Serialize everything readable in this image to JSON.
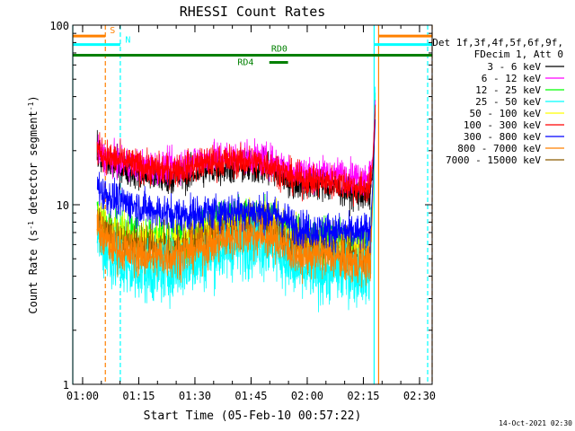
{
  "chart_data": {
    "type": "line",
    "title": "RHESSI Count Rates",
    "xlabel": "Start Time (05-Feb-10 00:57:22)",
    "ylabel_main": "Count Rate (s",
    "ylabel_sup1": "-1",
    "ylabel_mid": " detector segment",
    "ylabel_sup2": "-1",
    "ylabel_end": ")",
    "x_scale": "time (minutes since 00:57:22)",
    "xlim": [
      0,
      96
    ],
    "y_scale": "log",
    "ylim": [
      1,
      100
    ],
    "x_ticks": [
      {
        "label": "01:00",
        "t": 2.63
      },
      {
        "label": "01:15",
        "t": 17.63
      },
      {
        "label": "01:30",
        "t": 32.63
      },
      {
        "label": "01:45",
        "t": 47.63
      },
      {
        "label": "02:00",
        "t": 62.63
      },
      {
        "label": "02:15",
        "t": 77.63
      },
      {
        "label": "02:30",
        "t": 92.63
      }
    ],
    "y_ticks": [
      {
        "label": "100",
        "v": 100
      },
      {
        "label": "10",
        "v": 10
      },
      {
        "label": "1",
        "v": 1
      }
    ],
    "legend": {
      "placement": "right",
      "header": [
        "Det 1f,3f,4f,5f,6f,9f,",
        "FDecim 1, Att 0"
      ],
      "entries": [
        {
          "name": "3 - 6 keV",
          "color": "#000000"
        },
        {
          "name": "6 - 12 keV",
          "color": "#ff00ff"
        },
        {
          "name": "12 - 25 keV",
          "color": "#00ff00"
        },
        {
          "name": "25 - 50 keV",
          "color": "#00ffff"
        },
        {
          "name": "50 - 100 keV",
          "color": "#ffff00"
        },
        {
          "name": "100 - 300 keV",
          "color": "#ff0000"
        },
        {
          "name": "300 - 800 keV",
          "color": "#0000ff"
        },
        {
          "name": "800 - 7000 keV",
          "color": "#ff8000"
        },
        {
          "name": "7000 - 15000 keV",
          "color": "#8b5a00"
        }
      ]
    },
    "series": [
      {
        "color": "#00ff00",
        "t_start": 6.5,
        "t_end": 80.8,
        "noise": 0.06,
        "points": [
          [
            6.5,
            9
          ],
          [
            8,
            8
          ],
          [
            11,
            7
          ],
          [
            15,
            6.8
          ],
          [
            20,
            6.6
          ],
          [
            25,
            6.4
          ],
          [
            30,
            6.6
          ],
          [
            35,
            7.2
          ],
          [
            40,
            7.8
          ],
          [
            45,
            8.2
          ],
          [
            50,
            8.2
          ],
          [
            53,
            8
          ],
          [
            56,
            7.5
          ],
          [
            58,
            6.8
          ],
          [
            61,
            6.4
          ],
          [
            66,
            6.5
          ],
          [
            70,
            6.4
          ],
          [
            74,
            6
          ],
          [
            77,
            5.9
          ],
          [
            79.5,
            6.2
          ],
          [
            80.2,
            14
          ],
          [
            80.8,
            42
          ]
        ]
      },
      {
        "color": "#ffff00",
        "t_start": 6.5,
        "t_end": 80.8,
        "noise": 0.06,
        "points": [
          [
            6.5,
            8.6
          ],
          [
            8,
            7.6
          ],
          [
            11,
            6.8
          ],
          [
            15,
            6.4
          ],
          [
            20,
            6.2
          ],
          [
            25,
            6.1
          ],
          [
            30,
            6.3
          ],
          [
            35,
            6.8
          ],
          [
            40,
            7.4
          ],
          [
            45,
            7.8
          ],
          [
            50,
            7.8
          ],
          [
            53,
            7.6
          ],
          [
            56,
            7.1
          ],
          [
            58,
            6.4
          ],
          [
            61,
            6
          ],
          [
            66,
            6.1
          ],
          [
            70,
            6
          ],
          [
            74,
            5.6
          ],
          [
            77,
            5.5
          ],
          [
            79.5,
            5.8
          ],
          [
            80.2,
            13
          ],
          [
            80.8,
            40
          ]
        ]
      },
      {
        "color": "#8b5a00",
        "t_start": 6.5,
        "t_end": 80.8,
        "noise": 0.06,
        "points": [
          [
            6.5,
            8.2
          ],
          [
            8,
            7.2
          ],
          [
            11,
            6.4
          ],
          [
            15,
            6
          ],
          [
            20,
            5.8
          ],
          [
            25,
            5.7
          ],
          [
            30,
            5.9
          ],
          [
            35,
            6.4
          ],
          [
            40,
            7
          ],
          [
            45,
            7.4
          ],
          [
            50,
            7.4
          ],
          [
            53,
            7.2
          ],
          [
            56,
            6.7
          ],
          [
            58,
            6
          ],
          [
            61,
            5.6
          ],
          [
            66,
            5.7
          ],
          [
            70,
            5.6
          ],
          [
            74,
            5.2
          ],
          [
            77,
            5.1
          ],
          [
            79.5,
            5.4
          ],
          [
            80.2,
            12
          ],
          [
            80.8,
            38
          ]
        ]
      },
      {
        "color": "#00ffff",
        "t_start": 6.5,
        "t_end": 80.8,
        "noise": 0.085,
        "points": [
          [
            6.5,
            7
          ],
          [
            8,
            5.8
          ],
          [
            11,
            4.8
          ],
          [
            15,
            4.3
          ],
          [
            20,
            4.2
          ],
          [
            25,
            4.3
          ],
          [
            30,
            4.6
          ],
          [
            35,
            5
          ],
          [
            40,
            5.6
          ],
          [
            45,
            5.9
          ],
          [
            50,
            6
          ],
          [
            53,
            5.7
          ],
          [
            56,
            5.2
          ],
          [
            58,
            4.6
          ],
          [
            61,
            4.2
          ],
          [
            66,
            4.2
          ],
          [
            70,
            4.3
          ],
          [
            74,
            4.2
          ],
          [
            77,
            4.1
          ],
          [
            79.5,
            4.2
          ],
          [
            80.2,
            12
          ],
          [
            80.8,
            47
          ]
        ]
      },
      {
        "color": "#ff8000",
        "t_start": 6.5,
        "t_end": 80.8,
        "noise": 0.06,
        "points": [
          [
            6.5,
            7.6
          ],
          [
            8,
            6.6
          ],
          [
            11,
            5.8
          ],
          [
            15,
            5.4
          ],
          [
            20,
            5.2
          ],
          [
            25,
            5.1
          ],
          [
            30,
            5.4
          ],
          [
            35,
            5.8
          ],
          [
            40,
            6.4
          ],
          [
            45,
            6.8
          ],
          [
            50,
            6.8
          ],
          [
            53,
            6.6
          ],
          [
            56,
            6.1
          ],
          [
            58,
            5.5
          ],
          [
            61,
            5.2
          ],
          [
            66,
            5.2
          ],
          [
            70,
            5.1
          ],
          [
            74,
            4.8
          ],
          [
            77,
            4.7
          ],
          [
            79.5,
            4.9
          ],
          [
            80.2,
            11
          ],
          [
            80.8,
            36
          ]
        ]
      },
      {
        "color": "#0000ff",
        "t_start": 6.5,
        "t_end": 80.8,
        "noise": 0.05,
        "points": [
          [
            6.5,
            13
          ],
          [
            8,
            11.6
          ],
          [
            11,
            10.8
          ],
          [
            15,
            10.1
          ],
          [
            20,
            9.4
          ],
          [
            25,
            9
          ],
          [
            30,
            8.8
          ],
          [
            35,
            9
          ],
          [
            40,
            9.2
          ],
          [
            45,
            9.3
          ],
          [
            50,
            9.1
          ],
          [
            53,
            8.9
          ],
          [
            56,
            8.5
          ],
          [
            58,
            7.9
          ],
          [
            61,
            7.4
          ],
          [
            66,
            7.2
          ],
          [
            70,
            7.2
          ],
          [
            74,
            7
          ],
          [
            77,
            6.9
          ],
          [
            79.5,
            7.2
          ],
          [
            80.2,
            14
          ],
          [
            80.8,
            30
          ]
        ]
      },
      {
        "color": "#000000",
        "t_start": 6.5,
        "t_end": 80.8,
        "noise": 0.045,
        "points": [
          [
            6.5,
            19.5
          ],
          [
            8,
            17.5
          ],
          [
            11,
            16.5
          ],
          [
            15,
            15.5
          ],
          [
            20,
            14.5
          ],
          [
            25,
            14
          ],
          [
            30,
            14.5
          ],
          [
            35,
            15.5
          ],
          [
            40,
            16
          ],
          [
            45,
            16
          ],
          [
            50,
            16
          ],
          [
            53,
            15.5
          ],
          [
            56,
            14.5
          ],
          [
            58,
            13.5
          ],
          [
            61,
            13
          ],
          [
            66,
            13
          ],
          [
            70,
            12.5
          ],
          [
            74,
            11.8
          ],
          [
            77,
            11.3
          ],
          [
            79.5,
            11.5
          ],
          [
            80.2,
            16
          ],
          [
            80.8,
            35
          ]
        ]
      },
      {
        "color": "#ff00ff",
        "t_start": 6.5,
        "t_end": 80.8,
        "noise": 0.045,
        "points": [
          [
            6.5,
            20
          ],
          [
            8,
            18.5
          ],
          [
            11,
            17.5
          ],
          [
            15,
            16.8
          ],
          [
            20,
            16.2
          ],
          [
            25,
            16.2
          ],
          [
            30,
            17
          ],
          [
            35,
            18
          ],
          [
            40,
            18.5
          ],
          [
            45,
            18.5
          ],
          [
            50,
            18
          ],
          [
            53,
            17.5
          ],
          [
            56,
            16.5
          ],
          [
            58,
            15.8
          ],
          [
            61,
            15.2
          ],
          [
            66,
            15
          ],
          [
            70,
            14.8
          ],
          [
            74,
            14.5
          ],
          [
            77,
            14.2
          ],
          [
            79.5,
            14.8
          ],
          [
            80.2,
            19
          ],
          [
            80.8,
            38
          ]
        ]
      },
      {
        "color": "#ff0000",
        "t_start": 6.5,
        "t_end": 80.8,
        "noise": 0.045,
        "points": [
          [
            6.5,
            20.5
          ],
          [
            8,
            19
          ],
          [
            11,
            18
          ],
          [
            15,
            17
          ],
          [
            20,
            16
          ],
          [
            25,
            15.5
          ],
          [
            30,
            16
          ],
          [
            35,
            17
          ],
          [
            40,
            17.5
          ],
          [
            45,
            17.5
          ],
          [
            50,
            17
          ],
          [
            53,
            16.5
          ],
          [
            56,
            15.2
          ],
          [
            58,
            14.2
          ],
          [
            61,
            13.8
          ],
          [
            66,
            13.5
          ],
          [
            70,
            13.3
          ],
          [
            74,
            12.8
          ],
          [
            77,
            12.3
          ],
          [
            79.5,
            12.8
          ],
          [
            80.2,
            18
          ],
          [
            80.8,
            36
          ]
        ]
      }
    ],
    "vertical_markers": [
      {
        "t": 0.0,
        "color": "#00ffff",
        "style": "solid"
      },
      {
        "t": 8.7,
        "color": "#ff8000",
        "style": "dashed"
      },
      {
        "t": 12.7,
        "color": "#00ffff",
        "style": "dashed"
      },
      {
        "t": 80.5,
        "color": "#00ffff",
        "style": "solid"
      },
      {
        "t": 81.7,
        "color": "#ff8000",
        "style": "solid"
      },
      {
        "t": 94.8,
        "color": "#00ffff",
        "style": "dashed"
      },
      {
        "t": 96.0,
        "color": "#ff8000",
        "style": "dashed"
      }
    ],
    "flag_bars": [
      {
        "label": "S",
        "color": "#ff8000",
        "t0": 0,
        "t1": 8.7,
        "v": 87,
        "label_t": 9.9,
        "label_v": 90
      },
      {
        "label": "",
        "color": "#ff8000",
        "t0": 81.7,
        "t1": 96,
        "v": 87
      },
      {
        "label": "N",
        "color": "#00ffff",
        "t0": 0,
        "t1": 12.7,
        "v": 78,
        "label_t": 14.0,
        "label_v": 80
      },
      {
        "label": "",
        "color": "#00ffff",
        "t0": 80.5,
        "t1": 96,
        "v": 78
      },
      {
        "label": "RD0",
        "color": "#008000",
        "t0": 0,
        "t1": 96,
        "v": 68,
        "label_t": 53.0,
        "label_v": 71
      },
      {
        "label": "RD4",
        "color": "#008000",
        "t0": 52.5,
        "t1": 57.5,
        "v": 62,
        "label_t": 44.0,
        "label_v": 60
      }
    ],
    "timestamp": "14-Oct-2021 02:30"
  }
}
